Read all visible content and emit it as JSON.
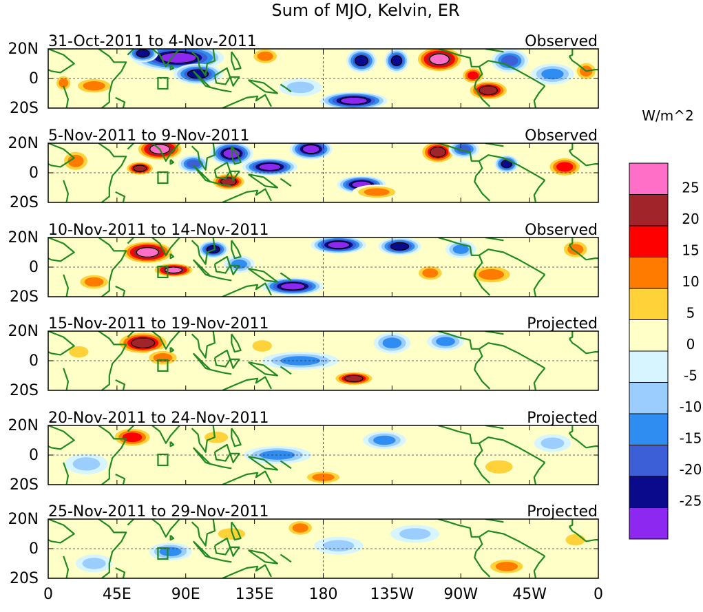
{
  "chart_data": {
    "type": "heatmap",
    "title": "Sum of MJO, Kelvin, ER",
    "colorbar": {
      "unit_label": "W/m^2",
      "tick_labels": [
        "25",
        "20",
        "15",
        "10",
        "5",
        "0",
        "-5",
        "-10",
        "-15",
        "-20",
        "-25"
      ],
      "bins": [
        {
          "range": [
            25,
            40
          ],
          "color": "#ff6ec7"
        },
        {
          "range": [
            20,
            25
          ],
          "color": "#a0242a"
        },
        {
          "range": [
            15,
            20
          ],
          "color": "#ff0000"
        },
        {
          "range": [
            10,
            15
          ],
          "color": "#ff7b00"
        },
        {
          "range": [
            5,
            10
          ],
          "color": "#ffd23a"
        },
        {
          "range": [
            0,
            5
          ],
          "color": "#ffffc8"
        },
        {
          "range": [
            -5,
            0
          ],
          "color": "#d6f5ff"
        },
        {
          "range": [
            -10,
            -5
          ],
          "color": "#9ccdff"
        },
        {
          "range": [
            -15,
            -10
          ],
          "color": "#2f8cf0"
        },
        {
          "range": [
            -20,
            -15
          ],
          "color": "#3c5fd7"
        },
        {
          "range": [
            -25,
            -20
          ],
          "color": "#0a0a8c"
        },
        {
          "range": [
            -40,
            -25
          ],
          "color": "#8c28f0"
        }
      ]
    },
    "x_ticks": [
      {
        "lon": 0,
        "label": "0"
      },
      {
        "lon": 45,
        "label": "45E"
      },
      {
        "lon": 90,
        "label": "90E"
      },
      {
        "lon": 135,
        "label": "135E"
      },
      {
        "lon": 180,
        "label": "180"
      },
      {
        "lon": 225,
        "label": "135W"
      },
      {
        "lon": 270,
        "label": "90W"
      },
      {
        "lon": 315,
        "label": "45W"
      },
      {
        "lon": 360,
        "label": "0"
      }
    ],
    "y_ticks": [
      {
        "lat": 20,
        "label": "20N"
      },
      {
        "lat": 0,
        "label": "0"
      },
      {
        "lat": -20,
        "label": "20S"
      }
    ],
    "xlim": [
      0,
      360
    ],
    "ylim": [
      -20,
      20
    ],
    "panels": [
      {
        "period": "31-Oct-2011 to 4-Nov-2011",
        "status": "Observed",
        "anomalies": [
          {
            "lon": 85,
            "lat": 14,
            "wlon": 30,
            "wlat": 9,
            "value": -32
          },
          {
            "lon": 98,
            "lat": 3,
            "wlon": 16,
            "wlat": 7,
            "value": -24
          },
          {
            "lon": 62,
            "lat": 17,
            "wlon": 10,
            "wlat": 6,
            "value": -22
          },
          {
            "lon": 30,
            "lat": -5,
            "wlon": 14,
            "wlat": 6,
            "value": 14
          },
          {
            "lon": 10,
            "lat": -3,
            "wlon": 6,
            "wlat": 6,
            "value": 10
          },
          {
            "lon": 142,
            "lat": 15,
            "wlon": 10,
            "wlat": 6,
            "value": 12
          },
          {
            "lon": 200,
            "lat": -15,
            "wlon": 22,
            "wlat": 6,
            "value": -28
          },
          {
            "lon": 205,
            "lat": 12,
            "wlon": 10,
            "wlat": 8,
            "value": -22
          },
          {
            "lon": 228,
            "lat": 12,
            "wlon": 8,
            "wlat": 8,
            "value": -24
          },
          {
            "lon": 256,
            "lat": 13,
            "wlon": 16,
            "wlat": 9,
            "value": 30
          },
          {
            "lon": 288,
            "lat": -8,
            "wlon": 14,
            "wlat": 7,
            "value": 24
          },
          {
            "lon": 278,
            "lat": 2,
            "wlon": 8,
            "wlat": 6,
            "value": 16
          },
          {
            "lon": 302,
            "lat": 12,
            "wlon": 12,
            "wlat": 8,
            "value": -16
          },
          {
            "lon": 330,
            "lat": 3,
            "wlon": 14,
            "wlat": 7,
            "value": -12
          },
          {
            "lon": 352,
            "lat": 5,
            "wlon": 8,
            "wlat": 7,
            "value": 14
          },
          {
            "lon": 165,
            "lat": -6,
            "wlon": 14,
            "wlat": 6,
            "value": -8
          }
        ]
      },
      {
        "period": "5-Nov-2011 to 9-Nov-2011",
        "status": "Observed",
        "anomalies": [
          {
            "lon": 73,
            "lat": 16,
            "wlon": 16,
            "wlat": 8,
            "value": 30
          },
          {
            "lon": 120,
            "lat": 13,
            "wlon": 14,
            "wlat": 8,
            "value": -32
          },
          {
            "lon": 145,
            "lat": 4,
            "wlon": 18,
            "wlat": 6,
            "value": -28
          },
          {
            "lon": 172,
            "lat": 16,
            "wlon": 14,
            "wlat": 7,
            "value": -26
          },
          {
            "lon": 60,
            "lat": 3,
            "wlon": 10,
            "wlat": 5,
            "value": 24
          },
          {
            "lon": 118,
            "lat": -6,
            "wlon": 12,
            "wlat": 6,
            "value": 22
          },
          {
            "lon": 205,
            "lat": -8,
            "wlon": 16,
            "wlat": 6,
            "value": -28
          },
          {
            "lon": 215,
            "lat": -13,
            "wlon": 16,
            "wlat": 5,
            "value": 12
          },
          {
            "lon": 255,
            "lat": 14,
            "wlon": 12,
            "wlat": 8,
            "value": 22
          },
          {
            "lon": 272,
            "lat": 16,
            "wlon": 10,
            "wlat": 6,
            "value": -18
          },
          {
            "lon": 300,
            "lat": 6,
            "wlon": 8,
            "wlat": 6,
            "value": -24
          },
          {
            "lon": 338,
            "lat": 4,
            "wlon": 12,
            "wlat": 7,
            "value": 18
          },
          {
            "lon": 18,
            "lat": 8,
            "wlon": 10,
            "wlat": 8,
            "value": 10
          },
          {
            "lon": 95,
            "lat": 6,
            "wlon": 10,
            "wlat": 6,
            "value": -16
          }
        ]
      },
      {
        "period": "10-Nov-2011 to 14-Nov-2011",
        "status": "Observed",
        "anomalies": [
          {
            "lon": 65,
            "lat": 10,
            "wlon": 18,
            "wlat": 8,
            "value": 28
          },
          {
            "lon": 82,
            "lat": -2,
            "wlon": 14,
            "wlat": 5,
            "value": 26
          },
          {
            "lon": 160,
            "lat": -13,
            "wlon": 20,
            "wlat": 6,
            "value": -28
          },
          {
            "lon": 190,
            "lat": 15,
            "wlon": 18,
            "wlat": 6,
            "value": -26
          },
          {
            "lon": 230,
            "lat": 14,
            "wlon": 14,
            "wlat": 6,
            "value": -24
          },
          {
            "lon": 108,
            "lat": 12,
            "wlon": 10,
            "wlat": 6,
            "value": -22
          },
          {
            "lon": 125,
            "lat": 2,
            "wlon": 10,
            "wlat": 6,
            "value": -14
          },
          {
            "lon": 250,
            "lat": -4,
            "wlon": 10,
            "wlat": 6,
            "value": 12
          },
          {
            "lon": 290,
            "lat": -5,
            "wlon": 16,
            "wlat": 7,
            "value": 12
          },
          {
            "lon": 30,
            "lat": -10,
            "wlon": 12,
            "wlat": 6,
            "value": 14
          },
          {
            "lon": 345,
            "lat": 12,
            "wlon": 10,
            "wlat": 7,
            "value": 14
          },
          {
            "lon": 270,
            "lat": 12,
            "wlon": 10,
            "wlat": 6,
            "value": -14
          }
        ]
      },
      {
        "period": "15-Nov-2011 to 19-Nov-2011",
        "status": "Projected",
        "anomalies": [
          {
            "lon": 62,
            "lat": 12,
            "wlon": 18,
            "wlat": 8,
            "value": 22
          },
          {
            "lon": 75,
            "lat": 2,
            "wlon": 12,
            "wlat": 6,
            "value": 14
          },
          {
            "lon": 200,
            "lat": -12,
            "wlon": 14,
            "wlat": 5,
            "value": 20
          },
          {
            "lon": 165,
            "lat": 0,
            "wlon": 25,
            "wlat": 6,
            "value": -12
          },
          {
            "lon": 225,
            "lat": 12,
            "wlon": 12,
            "wlat": 7,
            "value": -14
          },
          {
            "lon": 260,
            "lat": 13,
            "wlon": 12,
            "wlat": 6,
            "value": -12
          },
          {
            "lon": 140,
            "lat": 10,
            "wlon": 10,
            "wlat": 6,
            "value": 8
          },
          {
            "lon": 20,
            "lat": 6,
            "wlon": 10,
            "wlat": 6,
            "value": 8
          },
          {
            "lon": 300,
            "lat": -3,
            "wlon": 16,
            "wlat": 8,
            "value": 3
          }
        ]
      },
      {
        "period": "20-Nov-2011 to 24-Nov-2011",
        "status": "Projected",
        "anomalies": [
          {
            "lon": 55,
            "lat": 12,
            "wlon": 14,
            "wlat": 7,
            "value": 18
          },
          {
            "lon": 150,
            "lat": 0,
            "wlon": 22,
            "wlat": 6,
            "value": -14
          },
          {
            "lon": 180,
            "lat": -15,
            "wlon": 14,
            "wlat": 5,
            "value": 10
          },
          {
            "lon": 220,
            "lat": 10,
            "wlon": 14,
            "wlat": 6,
            "value": -10
          },
          {
            "lon": 295,
            "lat": -8,
            "wlon": 14,
            "wlat": 7,
            "value": 8
          },
          {
            "lon": 110,
            "lat": 12,
            "wlon": 12,
            "wlat": 6,
            "value": 6
          },
          {
            "lon": 25,
            "lat": -6,
            "wlon": 14,
            "wlat": 7,
            "value": -7
          },
          {
            "lon": 330,
            "lat": 8,
            "wlon": 12,
            "wlat": 6,
            "value": -6
          }
        ]
      },
      {
        "period": "25-Nov-2011 to 29-Nov-2011",
        "status": "Projected",
        "anomalies": [
          {
            "lon": 80,
            "lat": -2,
            "wlon": 14,
            "wlat": 6,
            "value": -10
          },
          {
            "lon": 165,
            "lat": 14,
            "wlon": 10,
            "wlat": 6,
            "value": 10
          },
          {
            "lon": 190,
            "lat": 2,
            "wlon": 16,
            "wlat": 6,
            "value": -8
          },
          {
            "lon": 300,
            "lat": -12,
            "wlon": 14,
            "wlat": 6,
            "value": 10
          },
          {
            "lon": 120,
            "lat": 10,
            "wlon": 14,
            "wlat": 6,
            "value": 7
          },
          {
            "lon": 240,
            "lat": 10,
            "wlon": 16,
            "wlat": 6,
            "value": -7
          },
          {
            "lon": 30,
            "lat": -10,
            "wlon": 12,
            "wlat": 6,
            "value": -6
          },
          {
            "lon": 345,
            "lat": 6,
            "wlon": 10,
            "wlat": 6,
            "value": 5
          }
        ]
      }
    ]
  }
}
